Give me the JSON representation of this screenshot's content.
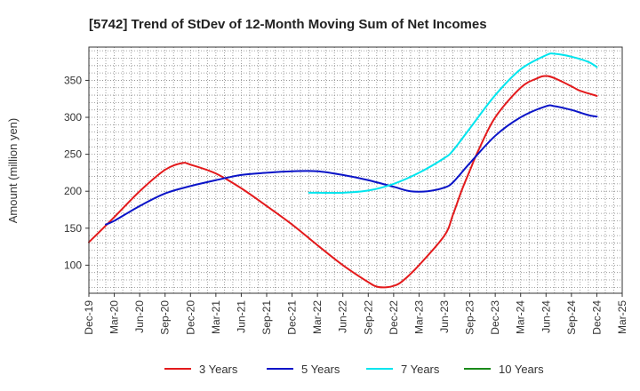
{
  "chart_data": {
    "type": "line",
    "title": "[5742]  Trend of StDev of 12-Month Moving Sum of Net Incomes",
    "ylabel": "Amount (million yen)",
    "xlabel": "",
    "x_ticks": [
      "Dec-19",
      "Mar-20",
      "Jun-20",
      "Sep-20",
      "Dec-20",
      "Mar-21",
      "Jun-21",
      "Sep-21",
      "Dec-21",
      "Mar-22",
      "Jun-22",
      "Sep-22",
      "Dec-22",
      "Mar-23",
      "Jun-23",
      "Sep-23",
      "Dec-23",
      "Mar-24",
      "Jun-24",
      "Sep-24",
      "Dec-24",
      "Mar-25"
    ],
    "y_ticks": [
      100,
      150,
      200,
      250,
      300,
      350
    ],
    "ylim": [
      62,
      395
    ],
    "grid": true,
    "legend_position": "bottom",
    "series": [
      {
        "name": "3 Years",
        "color": "#e31a1c",
        "points": [
          [
            "Dec-19",
            131
          ],
          [
            "Mar-20",
            165
          ],
          [
            "Jun-20",
            200
          ],
          [
            "Sep-20",
            229
          ],
          [
            "Nov-20",
            238
          ],
          [
            "Dec-20",
            236
          ],
          [
            "Mar-21",
            224
          ],
          [
            "Jun-21",
            204
          ],
          [
            "Sep-21",
            180
          ],
          [
            "Dec-21",
            155
          ],
          [
            "Mar-22",
            127
          ],
          [
            "Jun-22",
            100
          ],
          [
            "Sep-22",
            77
          ],
          [
            "Oct-22",
            71
          ],
          [
            "Nov-22",
            70
          ],
          [
            "Dec-22",
            72
          ],
          [
            "Jan-23",
            78
          ],
          [
            "Mar-23",
            100
          ],
          [
            "Jun-23",
            140
          ],
          [
            "Jul-23",
            168
          ],
          [
            "Aug-23",
            200
          ],
          [
            "Sep-23",
            228
          ],
          [
            "Oct-23",
            255
          ],
          [
            "Dec-23",
            300
          ],
          [
            "Mar-24",
            340
          ],
          [
            "May-24",
            353
          ],
          [
            "Jun-24",
            356
          ],
          [
            "Jul-24",
            353
          ],
          [
            "Sep-24",
            342
          ],
          [
            "Oct-24",
            336
          ],
          [
            "Dec-24",
            329
          ]
        ]
      },
      {
        "name": "5 Years",
        "color": "#0a14c8",
        "points": [
          [
            "Feb-20",
            155
          ],
          [
            "Mar-20",
            160
          ],
          [
            "Jun-20",
            180
          ],
          [
            "Sep-20",
            197
          ],
          [
            "Dec-20",
            207
          ],
          [
            "Mar-21",
            215
          ],
          [
            "Jun-21",
            222
          ],
          [
            "Sep-21",
            225
          ],
          [
            "Dec-21",
            227
          ],
          [
            "Mar-22",
            227
          ],
          [
            "Jun-22",
            222
          ],
          [
            "Sep-22",
            215
          ],
          [
            "Dec-22",
            206
          ],
          [
            "Feb-23",
            200
          ],
          [
            "Apr-23",
            200
          ],
          [
            "Jun-23",
            205
          ],
          [
            "Jul-23",
            212
          ],
          [
            "Sep-23",
            238
          ],
          [
            "Dec-23",
            275
          ],
          [
            "Mar-24",
            300
          ],
          [
            "Jun-24",
            315
          ],
          [
            "Jul-24",
            315
          ],
          [
            "Sep-24",
            310
          ],
          [
            "Nov-24",
            303
          ],
          [
            "Dec-24",
            301
          ]
        ]
      },
      {
        "name": "7 Years",
        "color": "#00e5ee",
        "points": [
          [
            "Feb-22",
            198
          ],
          [
            "Mar-22",
            198
          ],
          [
            "Jun-22",
            198
          ],
          [
            "Sep-22",
            201
          ],
          [
            "Dec-22",
            210
          ],
          [
            "Mar-23",
            225
          ],
          [
            "Jun-23",
            245
          ],
          [
            "Jul-23",
            255
          ],
          [
            "Sep-23",
            285
          ],
          [
            "Dec-23",
            330
          ],
          [
            "Mar-24",
            365
          ],
          [
            "Jun-24",
            384
          ],
          [
            "Jul-24",
            386
          ],
          [
            "Sep-24",
            382
          ],
          [
            "Nov-24",
            375
          ],
          [
            "Dec-24",
            368
          ]
        ]
      },
      {
        "name": "10 Years",
        "color": "#1a8a1a",
        "points": []
      }
    ]
  }
}
